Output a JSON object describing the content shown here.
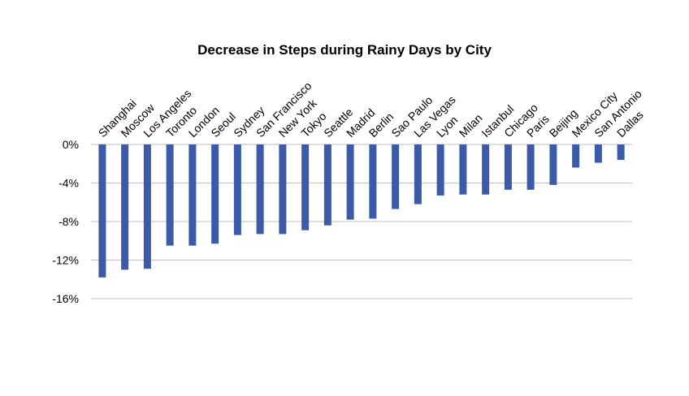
{
  "chart_data": {
    "type": "bar",
    "title": "Decrease in Steps during Rainy Days by City",
    "xlabel": "",
    "ylabel": "",
    "categories": [
      "Shanghai",
      "Moscow",
      "Los Angeles",
      "Toronto",
      "London",
      "Seoul",
      "Sydney",
      "San Francisco",
      "New York",
      "Tokyo",
      "Seattle",
      "Madrid",
      "Berlin",
      "Sao Paulo",
      "Las Vegas",
      "Lyon",
      "Milan",
      "Istanbul",
      "Chicago",
      "Paris",
      "Beijing",
      "Mexico City",
      "San Antonio",
      "Dallas"
    ],
    "values": [
      -13.8,
      -13.0,
      -12.9,
      -10.5,
      -10.5,
      -10.3,
      -9.4,
      -9.3,
      -9.3,
      -8.9,
      -8.4,
      -7.8,
      -7.7,
      -6.7,
      -6.2,
      -5.3,
      -5.2,
      -5.2,
      -4.7,
      -4.7,
      -4.2,
      -2.4,
      -1.9,
      -1.6
    ],
    "ylim": [
      -16,
      0
    ],
    "yticks": [
      "0%",
      "-4%",
      "-8%",
      "-12%",
      "-16%"
    ],
    "grid": true,
    "legend": "none",
    "colors": {
      "bar": "#3b5ba9",
      "grid": "#bfbfbf"
    }
  }
}
